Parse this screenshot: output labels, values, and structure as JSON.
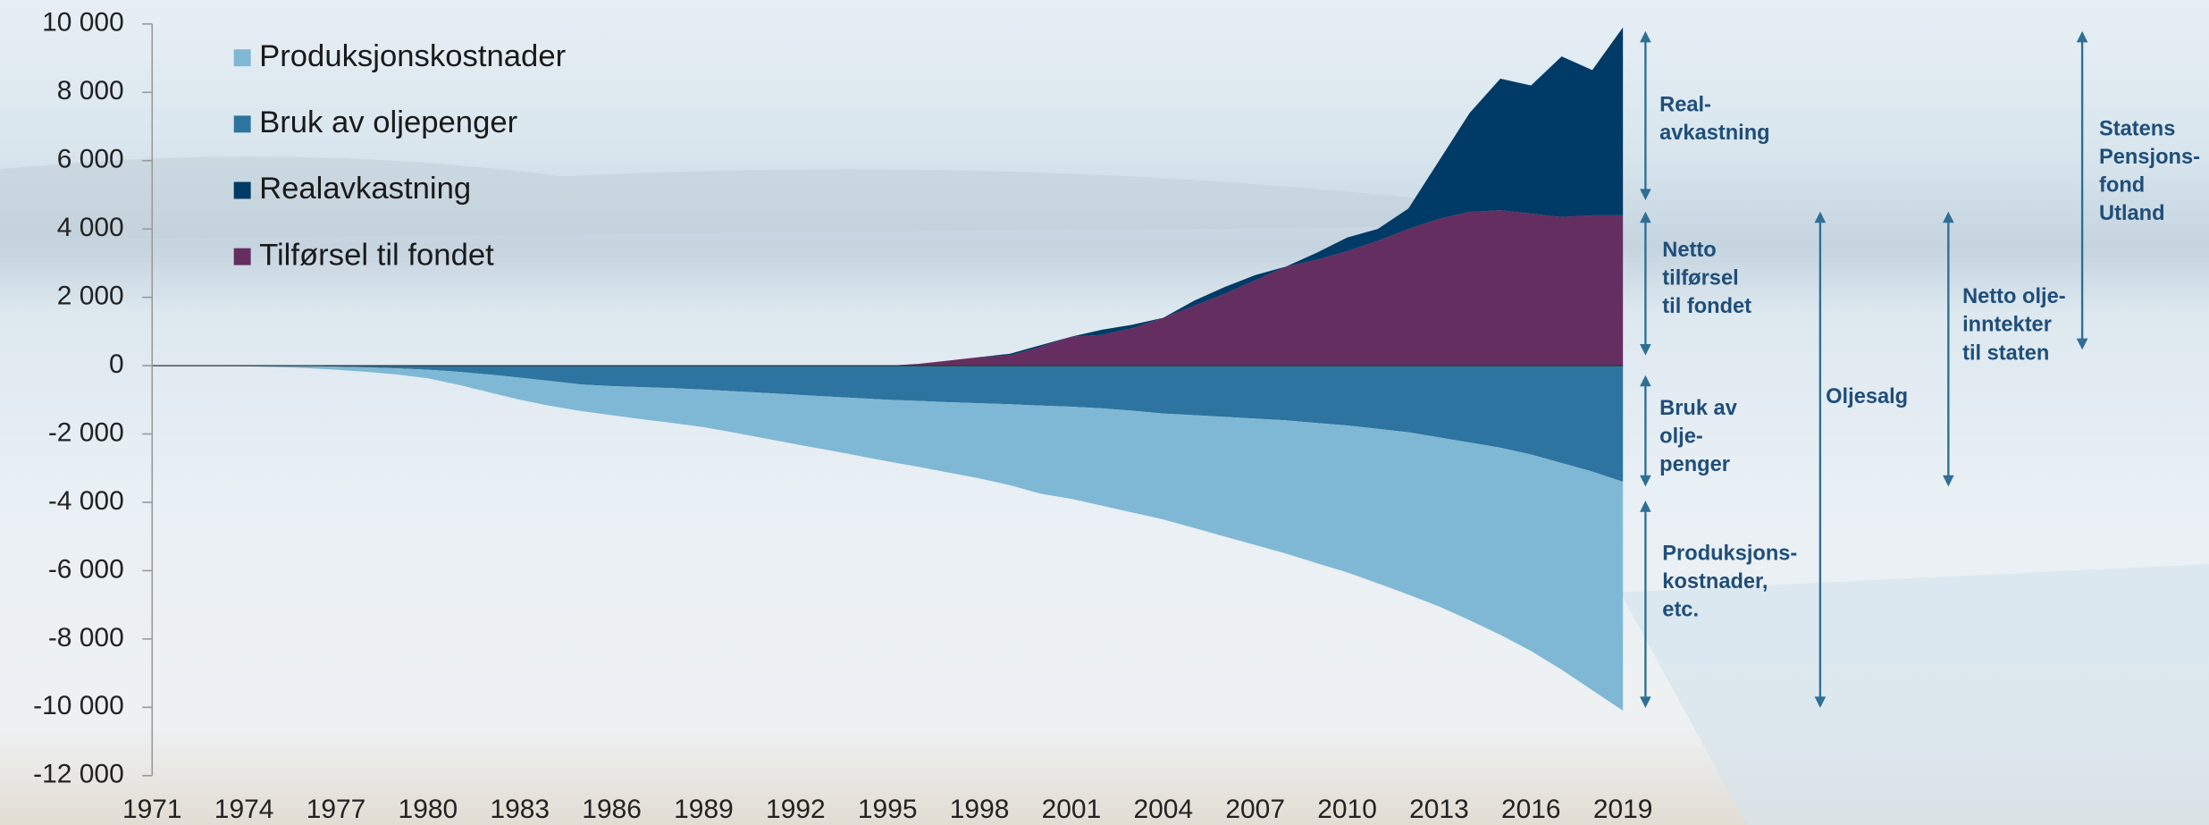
{
  "chart_data": {
    "type": "stacked-area",
    "x": [
      1971,
      1972,
      1973,
      1974,
      1975,
      1976,
      1977,
      1978,
      1979,
      1980,
      1981,
      1982,
      1983,
      1984,
      1985,
      1986,
      1987,
      1988,
      1989,
      1990,
      1991,
      1992,
      1993,
      1994,
      1995,
      1996,
      1997,
      1998,
      1999,
      2000,
      2001,
      2002,
      2003,
      2004,
      2005,
      2006,
      2007,
      2008,
      2009,
      2010,
      2011,
      2012,
      2013,
      2014,
      2015,
      2016,
      2017,
      2018,
      2019
    ],
    "xlim": [
      1971,
      2019
    ],
    "xticks": [
      1971,
      1974,
      1977,
      1980,
      1983,
      1986,
      1989,
      1992,
      1995,
      1998,
      2001,
      2004,
      2007,
      2010,
      2013,
      2016,
      2019
    ],
    "ylim": [
      -12000,
      10000
    ],
    "yticks": [
      {
        "value": -12000,
        "label": "-12 000"
      },
      {
        "value": -10000,
        "label": "-10 000"
      },
      {
        "value": -8000,
        "label": "-8 000"
      },
      {
        "value": -6000,
        "label": "-6 000"
      },
      {
        "value": -4000,
        "label": "-4 000"
      },
      {
        "value": -2000,
        "label": "-2 000"
      },
      0,
      {
        "value": 2000,
        "label": "2 000"
      },
      {
        "value": 4000,
        "label": "4 000"
      },
      {
        "value": 6000,
        "label": "6 000"
      },
      {
        "value": 8000,
        "label": "8 000"
      },
      {
        "value": 10000,
        "label": "10 000"
      }
    ],
    "series": [
      {
        "name": "Bruk av oljepenger",
        "color": "#2e74a0",
        "values": [
          0,
          0,
          0,
          0,
          0,
          -10,
          -30,
          -50,
          -80,
          -120,
          -180,
          -260,
          -350,
          -450,
          -550,
          -600,
          -630,
          -660,
          -700,
          -750,
          -800,
          -850,
          -900,
          -950,
          -1000,
          -1030,
          -1070,
          -1100,
          -1130,
          -1170,
          -1200,
          -1250,
          -1320,
          -1400,
          -1450,
          -1500,
          -1550,
          -1600,
          -1680,
          -1750,
          -1850,
          -1950,
          -2100,
          -2250,
          -2400,
          -2600,
          -2850,
          -3100,
          -3400
        ]
      },
      {
        "name": "Produksjonskostnader",
        "color": "#7fb8d4",
        "values": [
          0,
          0,
          -10,
          -20,
          -40,
          -60,
          -90,
          -130,
          -180,
          -250,
          -380,
          -520,
          -650,
          -730,
          -780,
          -850,
          -940,
          -1020,
          -1100,
          -1210,
          -1330,
          -1450,
          -1560,
          -1680,
          -1800,
          -1930,
          -2060,
          -2200,
          -2370,
          -2580,
          -2700,
          -2850,
          -2980,
          -3100,
          -3300,
          -3500,
          -3700,
          -3900,
          -4100,
          -4300,
          -4520,
          -4750,
          -4950,
          -5200,
          -5480,
          -5750,
          -6050,
          -6400,
          -6700
        ]
      },
      {
        "name": "Tilførsel til fondet",
        "color": "#652e60",
        "values": [
          0,
          0,
          0,
          0,
          0,
          0,
          0,
          0,
          0,
          0,
          0,
          0,
          0,
          0,
          0,
          0,
          0,
          0,
          0,
          0,
          0,
          0,
          0,
          0,
          0,
          50,
          150,
          250,
          300,
          550,
          850,
          900,
          1100,
          1400,
          1750,
          2100,
          2500,
          2900,
          3100,
          3350,
          3650,
          4000,
          4300,
          4500,
          4550,
          4450,
          4350,
          4400,
          4400
        ]
      },
      {
        "name": "Realavkastning",
        "color": "#003a66",
        "values": [
          0,
          0,
          0,
          0,
          0,
          0,
          0,
          0,
          0,
          0,
          0,
          0,
          0,
          0,
          0,
          0,
          0,
          0,
          0,
          0,
          0,
          0,
          0,
          0,
          0,
          0,
          0,
          0,
          50,
          50,
          0,
          150,
          100,
          0,
          150,
          200,
          150,
          0,
          200,
          400,
          350,
          600,
          1700,
          2900,
          3850,
          3750,
          4700,
          4250,
          5500
        ]
      }
    ],
    "annotations": [
      {
        "lines": [
          "Real-",
          "avkastning"
        ]
      },
      {
        "lines": [
          "Netto",
          "tilførsel",
          "til fondet"
        ]
      },
      {
        "lines": [
          "Bruk av",
          "olje-",
          "penger"
        ]
      },
      {
        "lines": [
          "Produksjons-",
          "kostnader,",
          "etc."
        ]
      },
      {
        "lines": [
          "Oljesalg"
        ]
      },
      {
        "lines": [
          "Netto olje-",
          "inntekter",
          "til staten"
        ]
      },
      {
        "lines": [
          "Statens",
          "Pensjons-",
          "fond",
          "Utland"
        ]
      }
    ]
  }
}
